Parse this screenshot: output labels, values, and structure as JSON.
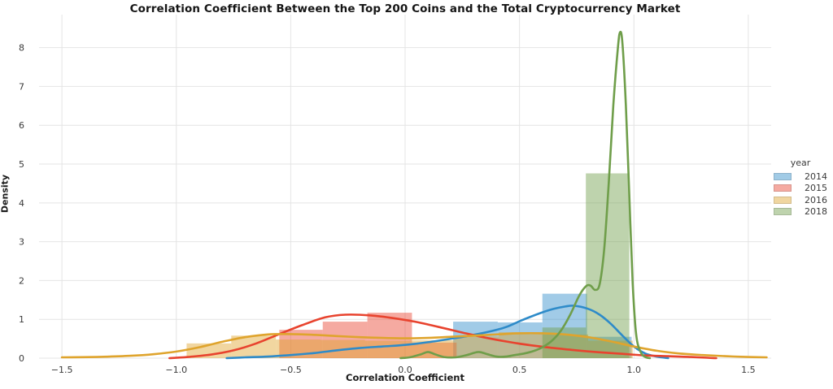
{
  "chart_data": {
    "type": "area",
    "subtype": "histogram-with-kde",
    "title": "Correlation Coefficient Between the Top 200 Coins and the Total Cryptocurrency Market",
    "xlabel": "Correlation Coefficient",
    "ylabel": "Density",
    "xlim": [
      -1.6,
      1.6
    ],
    "ylim": [
      0,
      8.85
    ],
    "grid": true,
    "grid_color": "#e4e4e4",
    "text_color": "#3a3a3a",
    "bar_fill_opacity": 0.45,
    "line_width": 2.6,
    "x_ticks": {
      "values": [
        -1.5,
        -1.0,
        -0.5,
        0.0,
        0.5,
        1.0,
        1.5
      ],
      "labels": [
        "−1.5",
        "−1.0",
        "−0.5",
        "0.0",
        "0.5",
        "1.0",
        "1.5"
      ]
    },
    "y_ticks": {
      "values": [
        0,
        1,
        2,
        3,
        4,
        5,
        6,
        7,
        8
      ],
      "labels": [
        "0",
        "1",
        "2",
        "3",
        "4",
        "5",
        "6",
        "7",
        "8"
      ]
    },
    "legend": {
      "title": "year",
      "position": "right"
    },
    "series": [
      {
        "name": "2014",
        "color": "#2e8bc9",
        "swatch": "#a1cbe6",
        "bars": [
          [
            0.21,
            0.405,
            0.94
          ],
          [
            0.405,
            0.6,
            0.92
          ],
          [
            0.6,
            0.795,
            1.66
          ],
          [
            0.795,
            0.99,
            0.55
          ]
        ],
        "kde": [
          [
            -0.78,
            0
          ],
          [
            -0.7,
            0.02
          ],
          [
            -0.6,
            0.04
          ],
          [
            -0.5,
            0.08
          ],
          [
            -0.4,
            0.13
          ],
          [
            -0.3,
            0.2
          ],
          [
            -0.2,
            0.26
          ],
          [
            -0.1,
            0.3
          ],
          [
            0.0,
            0.34
          ],
          [
            0.1,
            0.41
          ],
          [
            0.2,
            0.5
          ],
          [
            0.3,
            0.6
          ],
          [
            0.4,
            0.73
          ],
          [
            0.45,
            0.82
          ],
          [
            0.5,
            0.95
          ],
          [
            0.55,
            1.07
          ],
          [
            0.6,
            1.18
          ],
          [
            0.65,
            1.27
          ],
          [
            0.7,
            1.33
          ],
          [
            0.74,
            1.35
          ],
          [
            0.8,
            1.27
          ],
          [
            0.85,
            1.12
          ],
          [
            0.9,
            0.88
          ],
          [
            0.95,
            0.58
          ],
          [
            1.0,
            0.3
          ],
          [
            1.05,
            0.12
          ],
          [
            1.1,
            0.04
          ],
          [
            1.15,
            0
          ]
        ]
      },
      {
        "name": "2015",
        "color": "#e8432e",
        "swatch": "#f5aaa1",
        "bars": [
          [
            -0.55,
            -0.36,
            0.73
          ],
          [
            -0.36,
            -0.165,
            0.94
          ],
          [
            -0.165,
            0.03,
            1.17
          ],
          [
            0.03,
            0.225,
            0.4
          ]
        ],
        "kde": [
          [
            -1.03,
            0
          ],
          [
            -0.95,
            0.03
          ],
          [
            -0.85,
            0.09
          ],
          [
            -0.75,
            0.2
          ],
          [
            -0.65,
            0.38
          ],
          [
            -0.55,
            0.62
          ],
          [
            -0.45,
            0.85
          ],
          [
            -0.35,
            1.05
          ],
          [
            -0.26,
            1.12
          ],
          [
            -0.15,
            1.1
          ],
          [
            -0.05,
            1.03
          ],
          [
            0.05,
            0.93
          ],
          [
            0.15,
            0.8
          ],
          [
            0.25,
            0.66
          ],
          [
            0.35,
            0.53
          ],
          [
            0.45,
            0.42
          ],
          [
            0.55,
            0.33
          ],
          [
            0.65,
            0.26
          ],
          [
            0.75,
            0.2
          ],
          [
            0.85,
            0.15
          ],
          [
            0.95,
            0.11
          ],
          [
            1.05,
            0.07
          ],
          [
            1.15,
            0.05
          ],
          [
            1.25,
            0.03
          ],
          [
            1.32,
            0.01
          ],
          [
            1.36,
            0
          ]
        ]
      },
      {
        "name": "2016",
        "color": "#dfa42d",
        "swatch": "#f0d6a0",
        "bars": [
          [
            -0.955,
            -0.76,
            0.38
          ],
          [
            -0.76,
            -0.565,
            0.58
          ],
          [
            -0.565,
            -0.37,
            0.48
          ],
          [
            -0.37,
            -0.175,
            0.47
          ],
          [
            -0.175,
            0.02,
            0.45
          ],
          [
            0.02,
            0.215,
            0.46
          ],
          [
            0.215,
            0.41,
            0.56
          ],
          [
            0.41,
            0.605,
            0.67
          ],
          [
            0.605,
            0.8,
            0.61
          ],
          [
            0.8,
            0.995,
            0.45
          ]
        ],
        "kde": [
          [
            -1.5,
            0.02
          ],
          [
            -1.35,
            0.03
          ],
          [
            -1.2,
            0.06
          ],
          [
            -1.1,
            0.1
          ],
          [
            -1.0,
            0.17
          ],
          [
            -0.9,
            0.28
          ],
          [
            -0.8,
            0.42
          ],
          [
            -0.7,
            0.54
          ],
          [
            -0.6,
            0.61
          ],
          [
            -0.5,
            0.62
          ],
          [
            -0.4,
            0.6
          ],
          [
            -0.3,
            0.57
          ],
          [
            -0.2,
            0.54
          ],
          [
            -0.1,
            0.52
          ],
          [
            0.0,
            0.51
          ],
          [
            0.1,
            0.52
          ],
          [
            0.2,
            0.55
          ],
          [
            0.3,
            0.58
          ],
          [
            0.4,
            0.61
          ],
          [
            0.5,
            0.64
          ],
          [
            0.6,
            0.64
          ],
          [
            0.7,
            0.61
          ],
          [
            0.8,
            0.54
          ],
          [
            0.9,
            0.43
          ],
          [
            1.0,
            0.3
          ],
          [
            1.1,
            0.19
          ],
          [
            1.2,
            0.12
          ],
          [
            1.3,
            0.08
          ],
          [
            1.4,
            0.05
          ],
          [
            1.5,
            0.03
          ],
          [
            1.58,
            0.02
          ]
        ]
      },
      {
        "name": "2018",
        "color": "#6f9e4a",
        "swatch": "#bed3ad",
        "bars": [
          [
            0.6,
            0.79,
            0.79
          ],
          [
            0.79,
            0.98,
            4.76
          ]
        ],
        "kde": [
          [
            -0.02,
            0
          ],
          [
            0.02,
            0.02
          ],
          [
            0.07,
            0.1
          ],
          [
            0.1,
            0.16
          ],
          [
            0.13,
            0.1
          ],
          [
            0.17,
            0.03
          ],
          [
            0.22,
            0.02
          ],
          [
            0.27,
            0.08
          ],
          [
            0.32,
            0.16
          ],
          [
            0.36,
            0.1
          ],
          [
            0.4,
            0.04
          ],
          [
            0.44,
            0.04
          ],
          [
            0.48,
            0.08
          ],
          [
            0.52,
            0.12
          ],
          [
            0.56,
            0.18
          ],
          [
            0.6,
            0.28
          ],
          [
            0.64,
            0.44
          ],
          [
            0.68,
            0.7
          ],
          [
            0.72,
            1.1
          ],
          [
            0.76,
            1.6
          ],
          [
            0.79,
            1.85
          ],
          [
            0.81,
            1.87
          ],
          [
            0.83,
            1.76
          ],
          [
            0.85,
            1.9
          ],
          [
            0.87,
            2.8
          ],
          [
            0.89,
            4.5
          ],
          [
            0.91,
            6.5
          ],
          [
            0.93,
            8.0
          ],
          [
            0.94,
            8.4
          ],
          [
            0.95,
            8.1
          ],
          [
            0.965,
            6.5
          ],
          [
            0.98,
            4.2
          ],
          [
            0.995,
            1.9
          ],
          [
            1.01,
            0.6
          ],
          [
            1.03,
            0.15
          ],
          [
            1.05,
            0.03
          ],
          [
            1.07,
            0
          ]
        ]
      }
    ]
  }
}
